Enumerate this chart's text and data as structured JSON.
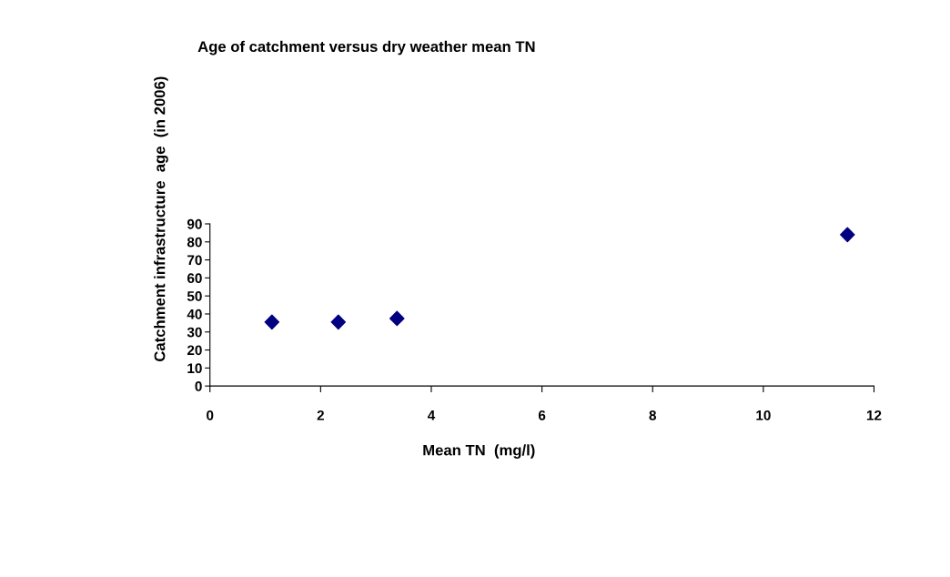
{
  "chart_data": {
    "type": "scatter",
    "title": "Age of catchment versus dry weather mean TN",
    "xlabel": "Mean TN  (mg/l)",
    "ylabel": "Catchment infrastructure  age  (in 2006)",
    "x": [
      1.12,
      2.32,
      3.38,
      11.52
    ],
    "series": [
      {
        "color": "#000080",
        "values": [
          35.5,
          35.5,
          37.5,
          84
        ]
      }
    ],
    "xlim": [
      0,
      12
    ],
    "xticks": [
      0,
      2,
      4,
      6,
      8,
      10,
      12
    ],
    "ylim": [
      0,
      90
    ],
    "yticks": [
      0,
      10,
      20,
      30,
      40,
      50,
      60,
      70,
      80,
      90
    ],
    "marker": "diamond",
    "grid": false
  }
}
